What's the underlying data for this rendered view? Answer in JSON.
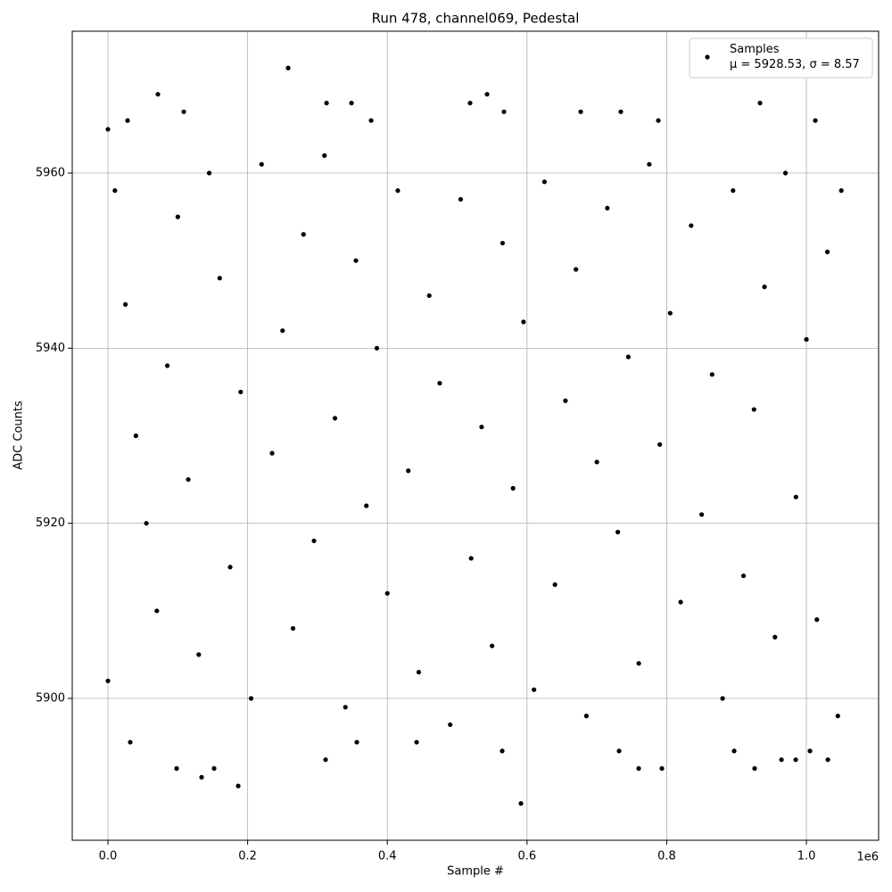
{
  "chart_data": {
    "type": "scatter",
    "title": "Run 478, channel069, Pedestal",
    "xlabel": "Sample #",
    "ylabel": "ADC Counts",
    "x_offset_label": "1e6",
    "xlim": [
      -51100,
      1103400
    ],
    "ylim": [
      5883.8,
      5976.2
    ],
    "xticks": [
      {
        "value": 0,
        "label": "0.0"
      },
      {
        "value": 200000,
        "label": "0.2"
      },
      {
        "value": 400000,
        "label": "0.4"
      },
      {
        "value": 600000,
        "label": "0.6"
      },
      {
        "value": 800000,
        "label": "0.8"
      },
      {
        "value": 1000000,
        "label": "1.0"
      }
    ],
    "yticks": [
      5900,
      5920,
      5940,
      5960
    ],
    "grid": true,
    "legend": "upper right",
    "series": [
      {
        "name": "Samples\nμ = 5928.53, σ = 8.57",
        "color": "#000000",
        "x": [
          0,
          71500,
          108600,
          258000,
          313000,
          348700,
          542800,
          518500,
          567000,
          676900,
          734300,
          933600,
          1012800,
          28100,
          376800,
          788000,
          591300,
          186500,
          134100,
          98300,
          152000,
          311600,
          759900,
          793100,
          925900,
          1030700,
          964300,
          984700,
          731800,
          564500,
          896600,
          1005100,
          31900,
          356300,
          441900,
          0,
          10000,
          25000,
          40000,
          55000,
          70000,
          85000,
          100000,
          115000,
          130000,
          145000,
          160000,
          175000,
          190000,
          205000,
          220000,
          235000,
          250000,
          265000,
          280000,
          295000,
          310000,
          325000,
          340000,
          355000,
          370000,
          385000,
          400000,
          415000,
          430000,
          445000,
          460000,
          475000,
          490000,
          505000,
          520000,
          535000,
          550000,
          565000,
          580000,
          595000,
          610000,
          625000,
          640000,
          655000,
          670000,
          685000,
          700000,
          715000,
          730000,
          745000,
          760000,
          775000,
          790000,
          805000,
          820000,
          835000,
          850000,
          865000,
          880000,
          895000,
          910000,
          925000,
          940000,
          955000,
          970000,
          985000,
          1000000,
          1015000,
          1030000,
          1045000,
          1050000
        ],
        "values": [
          5965,
          5969,
          5967,
          5972,
          5968,
          5968,
          5969,
          5968,
          5967,
          5967,
          5967,
          5968,
          5966,
          5966,
          5966,
          5966,
          5888,
          5890,
          5891,
          5892,
          5892,
          5893,
          5892,
          5892,
          5892,
          5893,
          5893,
          5893,
          5894,
          5894,
          5894,
          5894,
          5895,
          5895,
          5895,
          5902,
          5958,
          5945,
          5930,
          5920,
          5910,
          5938,
          5955,
          5925,
          5905,
          5960,
          5948,
          5915,
          5935,
          5900,
          5961,
          5928,
          5942,
          5908,
          5953,
          5918,
          5962,
          5932,
          5899,
          5950,
          5922,
          5940,
          5912,
          5958,
          5926,
          5903,
          5946,
          5936,
          5897,
          5957,
          5916,
          5931,
          5906,
          5952,
          5924,
          5943,
          5901,
          5959,
          5913,
          5934,
          5949,
          5898,
          5927,
          5956,
          5919,
          5939,
          5904,
          5961,
          5929,
          5944,
          5911,
          5954,
          5921,
          5937,
          5900,
          5958,
          5914,
          5933,
          5947,
          5907,
          5960,
          5923,
          5941,
          5909,
          5951,
          5898,
          5958
        ]
      }
    ]
  }
}
